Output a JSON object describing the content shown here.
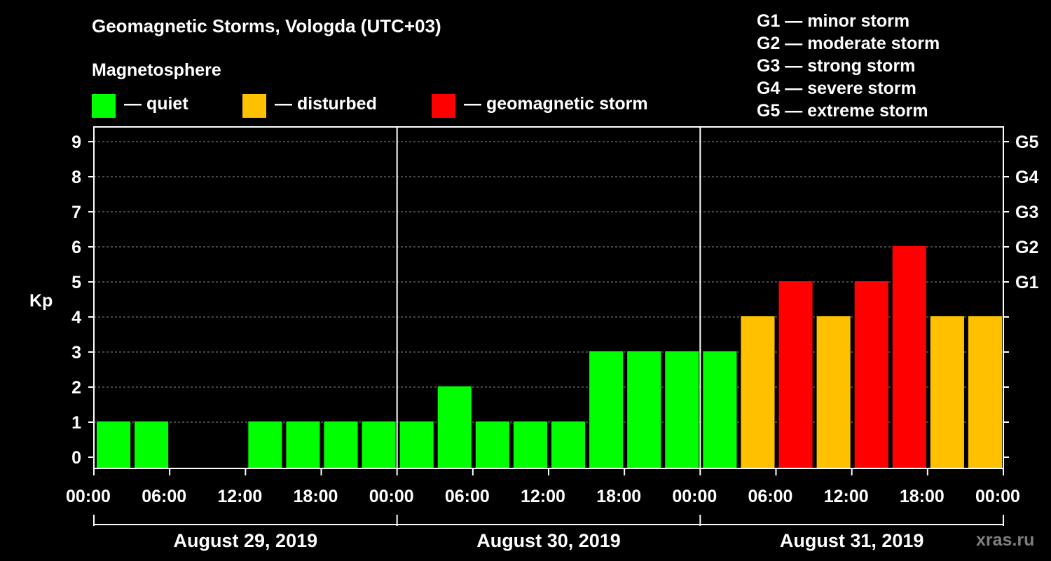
{
  "title": "Geomagnetic Storms, Vologda (UTC+03)",
  "subtitle": "Magnetosphere",
  "legend": [
    {
      "label": "— quiet",
      "color": "#00ff00"
    },
    {
      "label": "— disturbed",
      "color": "#ffc000"
    },
    {
      "label": "— geomagnetic storm",
      "color": "#ff0000"
    }
  ],
  "g_scale": [
    "G1 — minor storm",
    "G2 — moderate storm",
    "G3 — strong storm",
    "G4 — severe storm",
    "G5 — extreme storm"
  ],
  "watermark": "xras.ru",
  "chart_data": {
    "type": "bar",
    "ylabel": "Kp",
    "ylim": [
      0,
      9
    ],
    "y_ticks": [
      "0",
      "1",
      "2",
      "3",
      "4",
      "5",
      "6",
      "7",
      "8",
      "9"
    ],
    "right_ticks": [
      {
        "value": 5,
        "label": "G1"
      },
      {
        "value": 6,
        "label": "G2"
      },
      {
        "value": 7,
        "label": "G3"
      },
      {
        "value": 8,
        "label": "G4"
      },
      {
        "value": 9,
        "label": "G5"
      }
    ],
    "x_ticks": [
      "00:00",
      "06:00",
      "12:00",
      "18:00",
      "00:00",
      "06:00",
      "12:00",
      "18:00",
      "00:00",
      "06:00",
      "12:00",
      "18:00",
      "00:00"
    ],
    "days": [
      "August 29, 2019",
      "August 30, 2019",
      "August 31, 2019"
    ],
    "values": [
      1,
      1,
      0,
      0,
      1,
      1,
      1,
      1,
      1,
      2,
      1,
      1,
      1,
      3,
      3,
      3,
      3,
      4,
      5,
      4,
      5,
      6,
      4,
      4
    ],
    "colors": {
      "quiet": "#00ff00",
      "disturbed": "#ffc000",
      "storm": "#ff0000"
    },
    "grid": "dashed horizontal"
  }
}
